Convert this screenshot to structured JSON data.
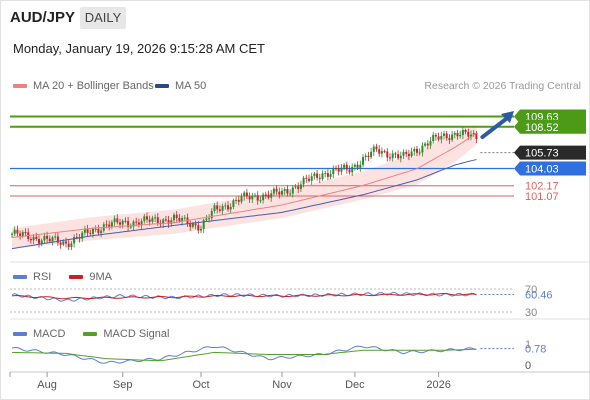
{
  "header": {
    "symbol": "AUD/JPY",
    "timeframe_button": "DAILY",
    "datetime": "Monday, January 19, 2026 9:15:28 AM CET"
  },
  "legend": {
    "ma20": "MA 20 + Bollinger Bands",
    "ma50": "MA 50",
    "credit": "Research © 2026 Trading Central"
  },
  "rsi_legend": {
    "rsi": "RSI",
    "ma": "9MA"
  },
  "macd_legend": {
    "macd": "MACD",
    "signal": "MACD Signal"
  },
  "colors": {
    "bull": "#2f8a2f",
    "bear": "#c0282d",
    "ma20": "#f08080",
    "band": "#fde2e2",
    "ma50": "#4a5ca8",
    "target": "#4c9a16",
    "pivot": "#2f6fe0",
    "support": "#e06060",
    "rsi": "#5a7fd6",
    "rsi_ma": "#cc2020",
    "macd": "#5a7fd6",
    "macd_signal": "#55a02a",
    "arrow": "#2c5aa0",
    "last": "#2a2a2a"
  },
  "chart_data": [
    {
      "type": "candlestick",
      "title": "AUD/JPY",
      "timeframe": "DAILY",
      "x_labels": [
        "Aug",
        "Sep",
        "Oct",
        "Nov",
        "Dec",
        "2026"
      ],
      "y_range": [
        94.5,
        111.4
      ],
      "series": [
        {
          "name": "MA 20 + Bollinger Bands",
          "points": [
            [
              0,
              96.6
            ],
            [
              30,
              97.6
            ],
            [
              60,
              98.2
            ],
            [
              100,
              100.1
            ],
            [
              130,
              102.2
            ],
            [
              150,
              104.0
            ],
            [
              164,
              106.3
            ],
            [
              172,
              107.8
            ]
          ]
        },
        {
          "name": "MA 50",
          "points": [
            [
              0,
              95.4
            ],
            [
              30,
              96.8
            ],
            [
              60,
              97.9
            ],
            [
              100,
              99.3
            ],
            [
              130,
              101.2
            ],
            [
              150,
              102.8
            ],
            [
              164,
              104.4
            ],
            [
              172,
              105.0
            ]
          ]
        }
      ],
      "bollinger": {
        "upper": [
          [
            0,
            97.6
          ],
          [
            30,
            98.8
          ],
          [
            60,
            99.6
          ],
          [
            100,
            101.6
          ],
          [
            130,
            103.7
          ],
          [
            150,
            105.8
          ],
          [
            164,
            107.8
          ],
          [
            172,
            108.6
          ]
        ],
        "lower": [
          [
            0,
            95.4
          ],
          [
            30,
            96.3
          ],
          [
            60,
            97.0
          ],
          [
            100,
            98.7
          ],
          [
            130,
            100.7
          ],
          [
            150,
            102.3
          ],
          [
            164,
            104.7
          ],
          [
            172,
            106.6
          ]
        ]
      },
      "closes_approx": [
        [
          0,
          97.0
        ],
        [
          20,
          96.0
        ],
        [
          35,
          98.0
        ],
        [
          60,
          98.6
        ],
        [
          70,
          97.8
        ],
        [
          75,
          99.5
        ],
        [
          85,
          100.8
        ],
        [
          100,
          101.4
        ],
        [
          115,
          103.5
        ],
        [
          125,
          104.0
        ],
        [
          135,
          106.0
        ],
        [
          145,
          105.2
        ],
        [
          155,
          107.0
        ],
        [
          165,
          107.9
        ],
        [
          172,
          107.3
        ]
      ],
      "levels": [
        {
          "label": "109.63",
          "value": 109.63,
          "style": "target"
        },
        {
          "label": "108.52",
          "value": 108.52,
          "style": "target"
        },
        {
          "label": "105.73",
          "value": 105.73,
          "style": "last"
        },
        {
          "label": "104.03",
          "value": 104.03,
          "style": "pivot"
        },
        {
          "label": "102.17",
          "value": 102.17,
          "style": "support"
        },
        {
          "label": "101.07",
          "value": 101.07,
          "style": "support"
        }
      ]
    },
    {
      "type": "line",
      "title": "RSI",
      "y_labels": [
        "70",
        "60.46",
        "30"
      ],
      "series": [
        {
          "name": "RSI",
          "points": [
            [
              0,
              60
            ],
            [
              20,
              50
            ],
            [
              40,
              58
            ],
            [
              60,
              55
            ],
            [
              80,
              60
            ],
            [
              100,
              58
            ],
            [
              120,
              60
            ],
            [
              140,
              62
            ],
            [
              160,
              60
            ],
            [
              172,
              60.46
            ]
          ]
        },
        {
          "name": "9MA",
          "points": [
            [
              0,
              58
            ],
            [
              20,
              54
            ],
            [
              40,
              55
            ],
            [
              60,
              56
            ],
            [
              80,
              58
            ],
            [
              100,
              58
            ],
            [
              120,
              59
            ],
            [
              140,
              60
            ],
            [
              160,
              61
            ],
            [
              172,
              60
            ]
          ]
        }
      ]
    },
    {
      "type": "line",
      "title": "MACD",
      "y_labels": [
        "1",
        "0.78",
        "0"
      ],
      "series": [
        {
          "name": "MACD",
          "points": [
            [
              0,
              0.8
            ],
            [
              20,
              0.5
            ],
            [
              35,
              0.1
            ],
            [
              55,
              0.3
            ],
            [
              75,
              0.9
            ],
            [
              95,
              0.3
            ],
            [
              115,
              0.5
            ],
            [
              130,
              0.9
            ],
            [
              145,
              0.6
            ],
            [
              160,
              0.7
            ],
            [
              172,
              0.78
            ]
          ]
        },
        {
          "name": "MACD Signal",
          "points": [
            [
              0,
              0.6
            ],
            [
              20,
              0.55
            ],
            [
              35,
              0.3
            ],
            [
              55,
              0.2
            ],
            [
              75,
              0.6
            ],
            [
              95,
              0.5
            ],
            [
              115,
              0.5
            ],
            [
              130,
              0.7
            ],
            [
              145,
              0.7
            ],
            [
              160,
              0.7
            ],
            [
              172,
              0.75
            ]
          ]
        }
      ]
    }
  ]
}
